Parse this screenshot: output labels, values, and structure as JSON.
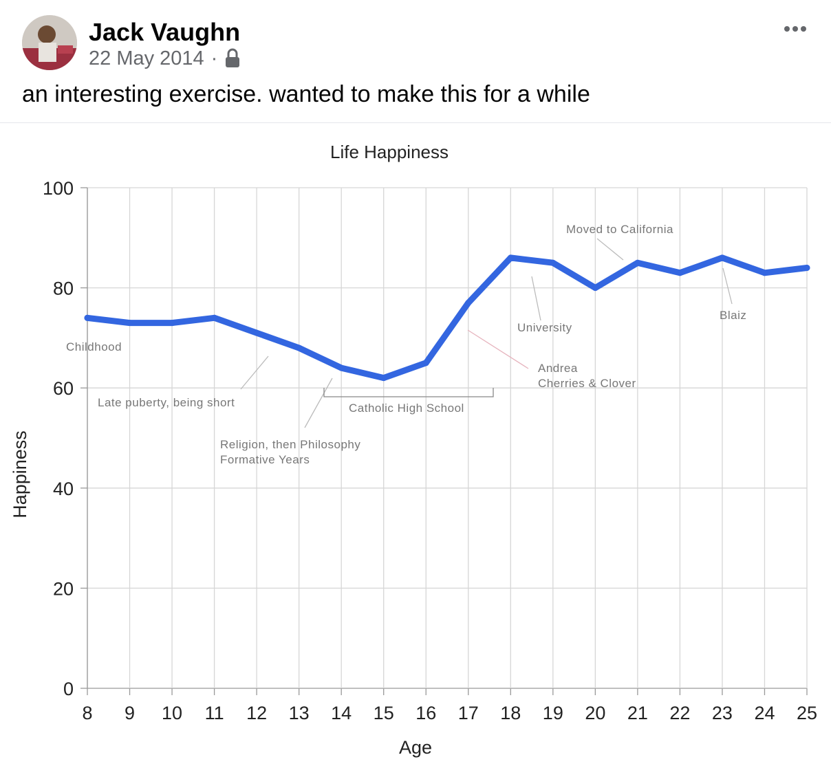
{
  "post": {
    "author": "Jack Vaughn",
    "date": "22 May 2014",
    "separator": "·",
    "privacy_icon": "lock-icon",
    "more_icon": "more-options-icon",
    "text": "an interesting exercise. wanted to make this for a while"
  },
  "chart_data": {
    "type": "line",
    "title": "Life Happiness",
    "xlabel": "Age",
    "ylabel": "Happiness",
    "x": [
      8,
      9,
      10,
      11,
      12,
      13,
      14,
      15,
      16,
      17,
      18,
      19,
      20,
      21,
      22,
      23,
      24,
      25
    ],
    "y": [
      74,
      73,
      73,
      74,
      71,
      68,
      64,
      62,
      65,
      77,
      86,
      85,
      80,
      85,
      83,
      86,
      83,
      84
    ],
    "xlim": [
      8,
      25
    ],
    "ylim": [
      0,
      100
    ],
    "yticks": [
      0,
      20,
      40,
      60,
      80,
      100
    ],
    "grid": true,
    "line_color": "#3366e0",
    "annotations": [
      {
        "id": "childhood",
        "text": "Childhood"
      },
      {
        "id": "puberty",
        "text": "Late puberty, being short"
      },
      {
        "id": "religion",
        "text": "Religion, then Philosophy"
      },
      {
        "id": "formative",
        "text": "Formative Years"
      },
      {
        "id": "catholic",
        "text": "Catholic High School"
      },
      {
        "id": "university",
        "text": "University"
      },
      {
        "id": "andrea",
        "text": "Andrea"
      },
      {
        "id": "cherries",
        "text": "Cherries & Clover"
      },
      {
        "id": "california",
        "text": "Moved to California"
      },
      {
        "id": "blaiz",
        "text": "Blaiz"
      }
    ]
  }
}
